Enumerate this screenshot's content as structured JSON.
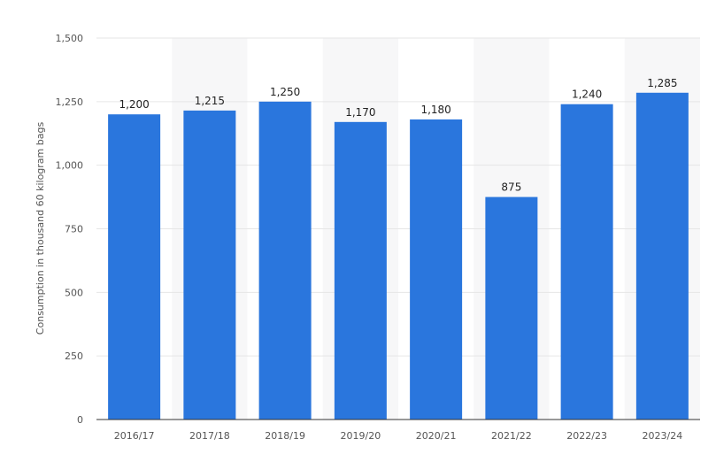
{
  "chart_data": {
    "type": "bar",
    "title": "",
    "xlabel": "",
    "ylabel": "Consumption in thousand 60 kilogram bags",
    "categories": [
      "2016/17",
      "2017/18",
      "2018/19",
      "2019/20",
      "2020/21",
      "2021/22",
      "2022/23",
      "2023/24"
    ],
    "values": [
      1200,
      1215,
      1250,
      1170,
      1180,
      875,
      1240,
      1285
    ],
    "value_labels": [
      "1,200",
      "1,215",
      "1,250",
      "1,170",
      "1,180",
      "875",
      "1,240",
      "1,285"
    ],
    "ylim": [
      0,
      1500
    ],
    "yticks": [
      0,
      250,
      500,
      750,
      1000,
      1250,
      1500
    ],
    "ytick_labels": [
      "0",
      "250",
      "500",
      "750",
      "1,000",
      "1,250",
      "1,500"
    ],
    "grid": true,
    "legend": "none",
    "bar_color": "#2a76dd",
    "band_color": "#f7f7f8"
  }
}
